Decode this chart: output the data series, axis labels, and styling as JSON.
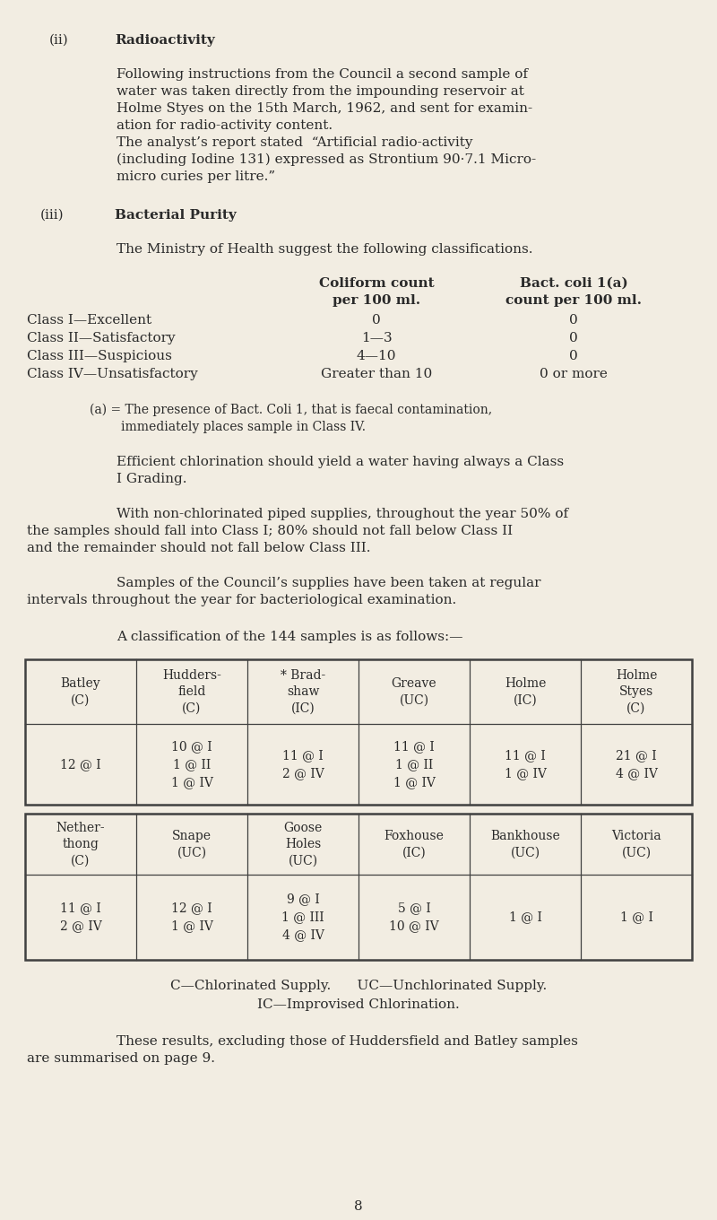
{
  "bg_color": "#f2ede2",
  "text_color": "#2a2a2a",
  "page_width": 8.0,
  "page_height": 13.6,
  "table2_row1_headers": [
    "Batley\n(C)",
    "Hudders-\nfield\n(C)",
    "* Brad-\nshaw\n(IC)",
    "Greave\n(UC)",
    "Holme\n(IC)",
    "Holme\nStyes\n(C)"
  ],
  "table2_row1_data": [
    "12 @ I",
    "10 @ I\n1 @ II\n1 @ IV",
    "11 @ I\n2 @ IV",
    "11 @ I\n1 @ II\n1 @ IV",
    "11 @ I\n1 @ IV",
    "21 @ I\n4 @ IV"
  ],
  "table2_row2_headers": [
    "Nether-\nthong\n(C)",
    "Snape\n(UC)",
    "Goose\nHoles\n(UC)",
    "Foxhouse\n(IC)",
    "Bankhouse\n(UC)",
    "Victoria\n(UC)"
  ],
  "table2_row2_data": [
    "11 @ I\n2 @ IV",
    "12 @ I\n1 @ IV",
    "9 @ I\n1 @ III\n4 @ IV",
    "5 @ I\n10 @ IV",
    "1 @ I",
    "1 @ I"
  ]
}
